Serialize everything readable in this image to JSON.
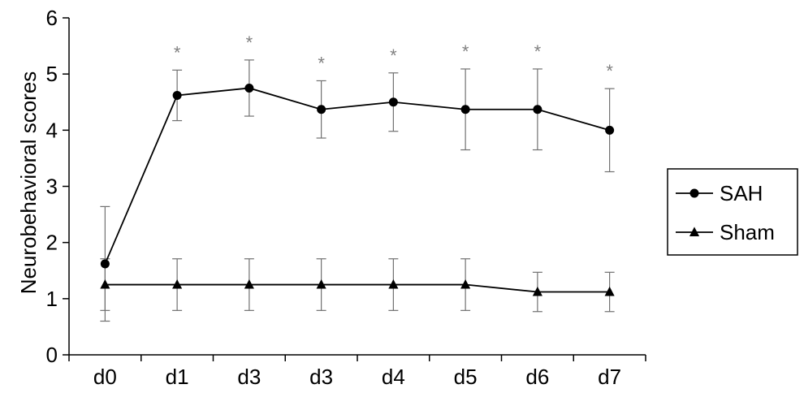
{
  "chart_data": {
    "type": "line",
    "ylabel": "Neurobehavioral scores",
    "xlabel": "",
    "categories": [
      "d0",
      "d1",
      "d3",
      "d3",
      "d4",
      "d5",
      "d6",
      "d7"
    ],
    "ylim": [
      0,
      6
    ],
    "yticks": [
      0,
      1,
      2,
      3,
      4,
      5,
      6
    ],
    "legend_position": "right",
    "grid": false,
    "series": [
      {
        "name": "SAH",
        "marker": "circle",
        "color": "#000000",
        "values": [
          1.62,
          4.62,
          4.75,
          4.37,
          4.5,
          4.37,
          4.37,
          4.0
        ],
        "error": [
          1.02,
          0.45,
          0.5,
          0.51,
          0.52,
          0.72,
          0.72,
          0.74
        ]
      },
      {
        "name": "Sham",
        "marker": "triangle",
        "color": "#000000",
        "values": [
          1.25,
          1.25,
          1.25,
          1.25,
          1.25,
          1.25,
          1.12,
          1.12
        ],
        "error": [
          0.46,
          0.46,
          0.46,
          0.46,
          0.46,
          0.46,
          0.35,
          0.35
        ]
      }
    ],
    "annotations": [
      {
        "category_index": 1,
        "text": "*"
      },
      {
        "category_index": 2,
        "text": "*"
      },
      {
        "category_index": 3,
        "text": "*"
      },
      {
        "category_index": 4,
        "text": "*"
      },
      {
        "category_index": 5,
        "text": "*"
      },
      {
        "category_index": 6,
        "text": "*"
      },
      {
        "category_index": 7,
        "text": "*"
      }
    ]
  }
}
